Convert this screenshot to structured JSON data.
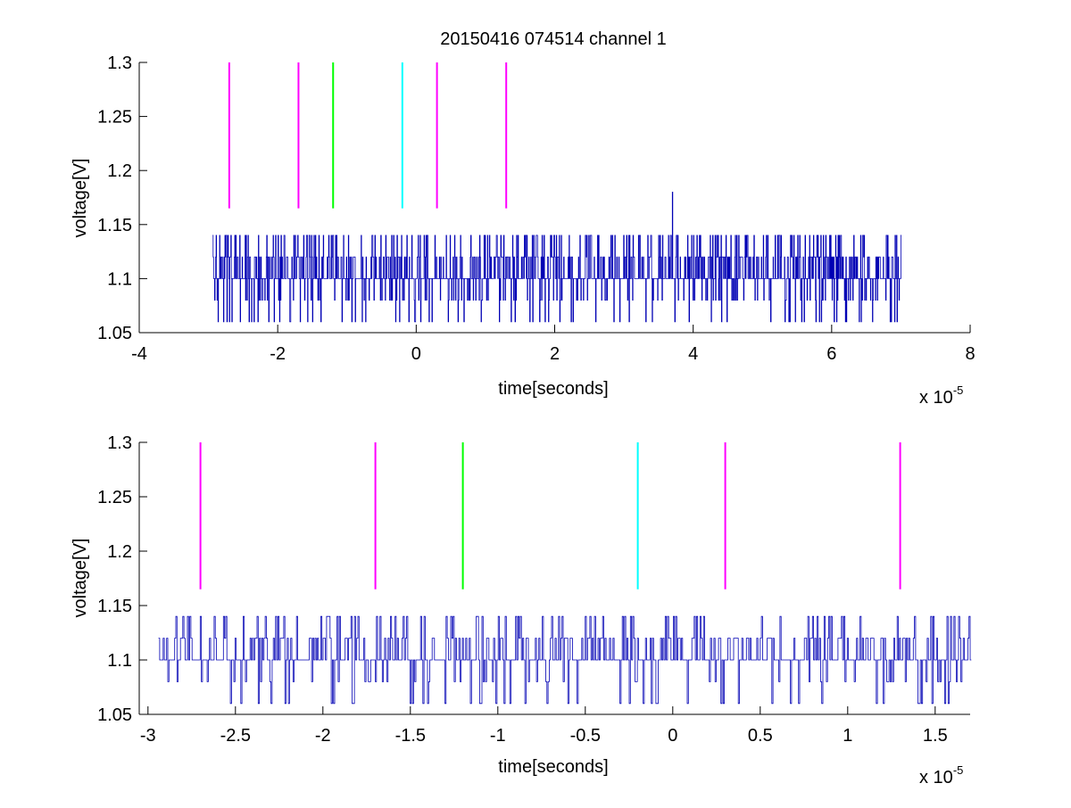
{
  "figure": {
    "title": "20150416 074514 channel 1",
    "colors": {
      "trace": "#0000b4",
      "magenta": "#ff00ff",
      "green": "#00ff00",
      "cyan": "#00ffff",
      "axis": "#000000"
    }
  },
  "chart_data": [
    {
      "type": "line",
      "title": "20150416 074514 channel 1",
      "xlabel": "time[seconds]",
      "ylabel": "voltage[V]",
      "x_multiplier_label": "x 10",
      "x_multiplier_exponent": "-5",
      "xlim": [
        -4e-05,
        8e-05
      ],
      "ylim": [
        1.05,
        1.3
      ],
      "xticks": [
        -4e-05,
        -2e-05,
        0,
        2e-05,
        4e-05,
        6e-05,
        8e-05
      ],
      "xtick_labels": [
        "-4",
        "-2",
        "0",
        "2",
        "4",
        "6",
        "8"
      ],
      "yticks": [
        1.05,
        1.1,
        1.15,
        1.2,
        1.25,
        1.3
      ],
      "ytick_labels": [
        "1.05",
        "1.1",
        "1.15",
        "1.2",
        "1.25",
        "1.3"
      ],
      "grid": false,
      "series": [
        {
          "values_description_x_range": [
            -2.94e-05,
            7e-05
          ],
          "levels": [
            1.06,
            1.08,
            1.1,
            1.12,
            1.14
          ],
          "spike": {
            "x": 3.7e-05,
            "y": 1.18
          }
        }
      ],
      "markers": [
        {
          "x": -2.7e-05,
          "y0": 1.165,
          "y1": 1.3,
          "color": "magenta"
        },
        {
          "x": -1.7e-05,
          "y0": 1.165,
          "y1": 1.3,
          "color": "magenta"
        },
        {
          "x": -1.2e-05,
          "y0": 1.165,
          "y1": 1.3,
          "color": "green"
        },
        {
          "x": -2e-06,
          "y0": 1.165,
          "y1": 1.3,
          "color": "cyan"
        },
        {
          "x": 3e-06,
          "y0": 1.165,
          "y1": 1.3,
          "color": "magenta"
        },
        {
          "x": 1.3e-05,
          "y0": 1.165,
          "y1": 1.3,
          "color": "magenta"
        }
      ]
    },
    {
      "type": "line",
      "title": "",
      "xlabel": "time[seconds]",
      "ylabel": "voltage[V]",
      "x_multiplier_label": "x 10",
      "x_multiplier_exponent": "-5",
      "xlim": [
        -3.05e-05,
        1.7e-05
      ],
      "ylim": [
        1.05,
        1.3
      ],
      "xticks": [
        -3e-05,
        -2.5e-05,
        -2e-05,
        -1.5e-05,
        -1e-05,
        -5e-06,
        0,
        5e-06,
        1e-05,
        1.5e-05
      ],
      "xtick_labels": [
        "-3",
        "-2.5",
        "-2",
        "-1.5",
        "-1",
        "-0.5",
        "0",
        "0.5",
        "1",
        "1.5"
      ],
      "yticks": [
        1.05,
        1.1,
        1.15,
        1.2,
        1.25,
        1.3
      ],
      "ytick_labels": [
        "1.05",
        "1.1",
        "1.15",
        "1.2",
        "1.25",
        "1.3"
      ],
      "grid": false,
      "series": [
        {
          "values_description_x_range": [
            -2.94e-05,
            1.7e-05
          ],
          "levels": [
            1.06,
            1.08,
            1.1,
            1.12,
            1.14
          ]
        }
      ],
      "markers": [
        {
          "x": -2.7e-05,
          "y0": 1.165,
          "y1": 1.3,
          "color": "magenta"
        },
        {
          "x": -1.7e-05,
          "y0": 1.165,
          "y1": 1.3,
          "color": "magenta"
        },
        {
          "x": -1.2e-05,
          "y0": 1.165,
          "y1": 1.3,
          "color": "green"
        },
        {
          "x": -2e-06,
          "y0": 1.165,
          "y1": 1.3,
          "color": "cyan"
        },
        {
          "x": 3e-06,
          "y0": 1.165,
          "y1": 1.3,
          "color": "magenta"
        },
        {
          "x": 1.3e-05,
          "y0": 1.165,
          "y1": 1.3,
          "color": "magenta"
        }
      ]
    }
  ]
}
